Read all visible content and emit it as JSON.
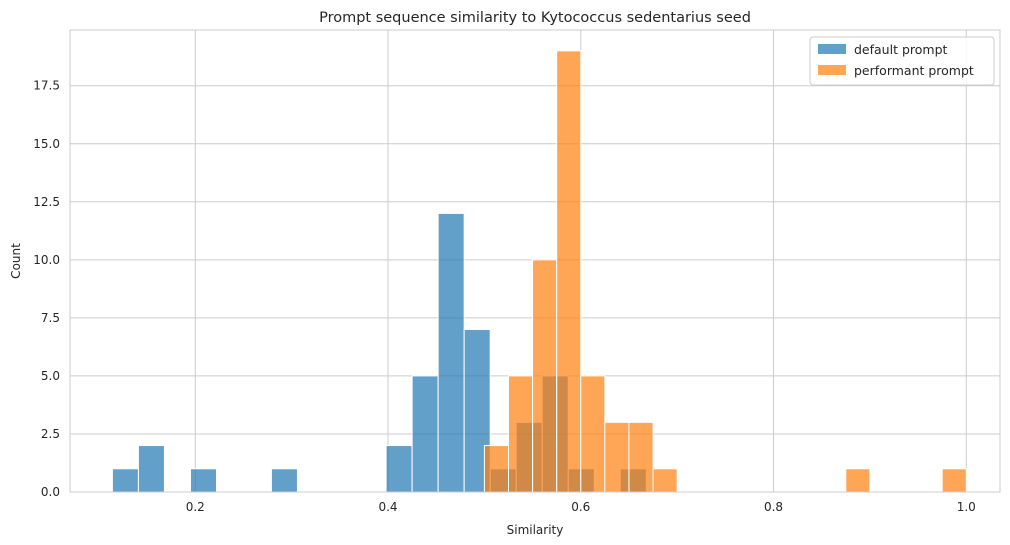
{
  "chart_data": {
    "type": "histogram",
    "title": "Prompt sequence similarity to Kytococcus sedentarius seed",
    "xlabel": "Similarity",
    "ylabel": "Count",
    "xlim": [
      0.07,
      1.035
    ],
    "ylim": [
      0,
      19.9
    ],
    "xticks": [
      0.2,
      0.4,
      0.6,
      0.8,
      1.0
    ],
    "xtick_labels": [
      "0.2",
      "0.4",
      "0.6",
      "0.8",
      "1.0"
    ],
    "yticks": [
      0,
      2.5,
      5,
      7.5,
      10,
      12.5,
      15,
      17.5
    ],
    "ytick_labels": [
      "0.0",
      "2.5",
      "5.0",
      "7.5",
      "10.0",
      "12.5",
      "15.0",
      "17.5"
    ],
    "grid": true,
    "legend": "top-right",
    "series": [
      {
        "name": "default prompt",
        "color": "#1f77b4",
        "alpha": 0.7,
        "bins": [
          {
            "x0": 0.114,
            "x1": 0.141,
            "count": 1
          },
          {
            "x0": 0.141,
            "x1": 0.168,
            "count": 2
          },
          {
            "x0": 0.195,
            "x1": 0.222,
            "count": 1
          },
          {
            "x0": 0.279,
            "x1": 0.306,
            "count": 1
          },
          {
            "x0": 0.398,
            "x1": 0.425,
            "count": 2
          },
          {
            "x0": 0.425,
            "x1": 0.452,
            "count": 5
          },
          {
            "x0": 0.452,
            "x1": 0.479,
            "count": 12
          },
          {
            "x0": 0.479,
            "x1": 0.506,
            "count": 7
          },
          {
            "x0": 0.506,
            "x1": 0.533,
            "count": 1
          },
          {
            "x0": 0.533,
            "x1": 0.56,
            "count": 3
          },
          {
            "x0": 0.56,
            "x1": 0.587,
            "count": 5
          },
          {
            "x0": 0.587,
            "x1": 0.614,
            "count": 1
          },
          {
            "x0": 0.641,
            "x1": 0.668,
            "count": 1
          }
        ]
      },
      {
        "name": "performant prompt",
        "color": "#ff7f0e",
        "alpha": 0.7,
        "bins": [
          {
            "x0": 0.5,
            "x1": 0.525,
            "count": 2
          },
          {
            "x0": 0.525,
            "x1": 0.55,
            "count": 5
          },
          {
            "x0": 0.55,
            "x1": 0.575,
            "count": 10
          },
          {
            "x0": 0.575,
            "x1": 0.6,
            "count": 19
          },
          {
            "x0": 0.6,
            "x1": 0.625,
            "count": 5
          },
          {
            "x0": 0.625,
            "x1": 0.65,
            "count": 3
          },
          {
            "x0": 0.65,
            "x1": 0.675,
            "count": 3
          },
          {
            "x0": 0.675,
            "x1": 0.7,
            "count": 1
          },
          {
            "x0": 0.875,
            "x1": 0.9,
            "count": 1
          },
          {
            "x0": 0.975,
            "x1": 1.0,
            "count": 1
          }
        ]
      }
    ]
  }
}
